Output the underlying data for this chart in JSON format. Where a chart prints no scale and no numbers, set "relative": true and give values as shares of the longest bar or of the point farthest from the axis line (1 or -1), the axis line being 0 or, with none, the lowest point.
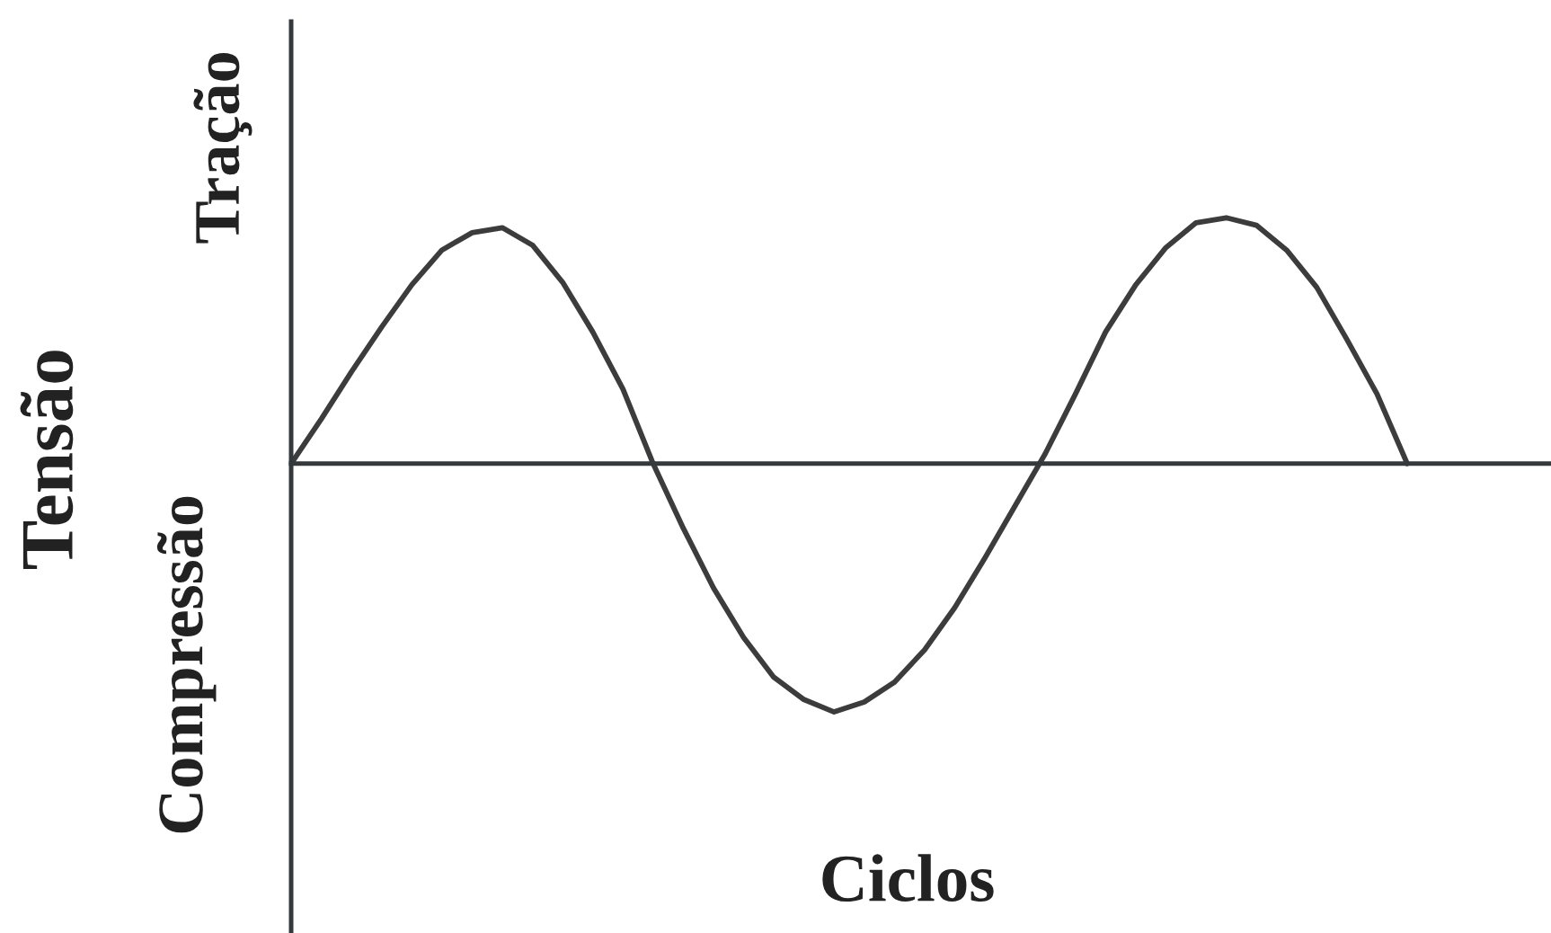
{
  "chart_data": {
    "type": "line",
    "relative": true,
    "xlabel": "Ciclos",
    "ylabel": "Tensão",
    "annotations": [
      "Tração",
      "Compressão"
    ],
    "categories": [
      null,
      null,
      null,
      null,
      null,
      null,
      null,
      null,
      null,
      null,
      null,
      null,
      null,
      null,
      null,
      null,
      null,
      null,
      null,
      null,
      null,
      null,
      null,
      null,
      null,
      null,
      null,
      null,
      null,
      null,
      null,
      null,
      null,
      null,
      null,
      null,
      null,
      null
    ],
    "color": "#3c3c3c",
    "values": [
      0,
      0.18,
      0.37,
      0.55,
      0.72,
      0.86,
      0.93,
      0.95,
      0.88,
      0.73,
      0.53,
      0.3,
      0,
      -0.26,
      -0.5,
      -0.7,
      -0.86,
      -0.95,
      -1,
      -0.96,
      -0.88,
      -0.75,
      -0.58,
      -0.38,
      -0.17,
      0.04,
      0.28,
      0.53,
      0.72,
      0.87,
      0.97,
      0.99,
      0.96,
      0.86,
      0.71,
      0.5,
      0.28,
      0
    ]
  }
}
